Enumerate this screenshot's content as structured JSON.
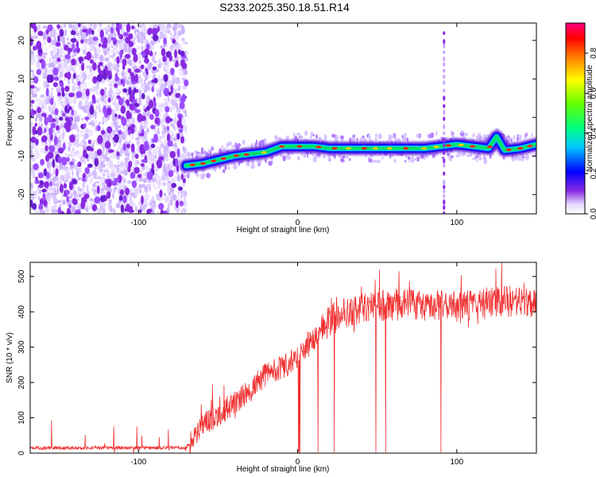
{
  "title": "S233.2025.350.18.51.R14",
  "chart_data": [
    {
      "type": "heatmap",
      "xlabel": "Height of straight line (km)",
      "ylabel": "Frequency (Hz)",
      "xlim": [
        -168,
        150
      ],
      "ylim": [
        -25,
        24.5
      ],
      "x_ticks": [
        -100,
        0,
        100
      ],
      "y_ticks": [
        -20,
        -10,
        0,
        10,
        20
      ],
      "grid": false,
      "colorbar": {
        "label": "Normalized spectral amplitude",
        "range": [
          0,
          0.95
        ],
        "ticks": [
          0.0,
          0.2,
          0.4,
          0.6,
          0.8
        ]
      },
      "noise_region": {
        "x_from": -168,
        "x_to": -70
      },
      "carrier_track": {
        "x": [
          -70,
          -60,
          -50,
          -40,
          -30,
          -20,
          -10,
          0,
          10,
          20,
          30,
          40,
          50,
          60,
          70,
          80,
          90,
          100,
          110,
          120,
          125,
          130,
          140,
          150
        ],
        "y": [
          -12.5,
          -12,
          -11,
          -10,
          -9.5,
          -9,
          -7.5,
          -7.5,
          -7.5,
          -8,
          -8,
          -8,
          -8,
          -8,
          -8,
          -8,
          -7.5,
          -7,
          -7.5,
          -8,
          -5,
          -8.5,
          -8,
          -7
        ],
        "peak_amplitude": 0.9
      },
      "spike": {
        "x": 92,
        "y_range": [
          -25,
          23
        ]
      }
    },
    {
      "type": "line",
      "xlabel": "Height of straight line (km)",
      "ylabel": "SNR (10 * v/v)",
      "xlim": [
        -168,
        150
      ],
      "ylim": [
        0,
        540
      ],
      "x_ticks": [
        -100,
        0,
        100
      ],
      "y_ticks": [
        0,
        100,
        200,
        300,
        400,
        500
      ],
      "color": "#f03030",
      "envelope": {
        "x": [
          -168,
          -100,
          -70,
          -60,
          -50,
          -40,
          -30,
          -20,
          -10,
          0,
          10,
          20,
          30,
          40,
          50,
          60,
          70,
          80,
          90,
          100,
          110,
          120,
          130,
          140,
          150
        ],
        "y": [
          15,
          15,
          15,
          80,
          110,
          140,
          175,
          225,
          245,
          265,
          325,
          375,
          400,
          410,
          415,
          420,
          420,
          420,
          420,
          410,
          420,
          425,
          430,
          425,
          430
        ]
      },
      "dropouts_x_range": [
        -10,
        98
      ]
    }
  ]
}
